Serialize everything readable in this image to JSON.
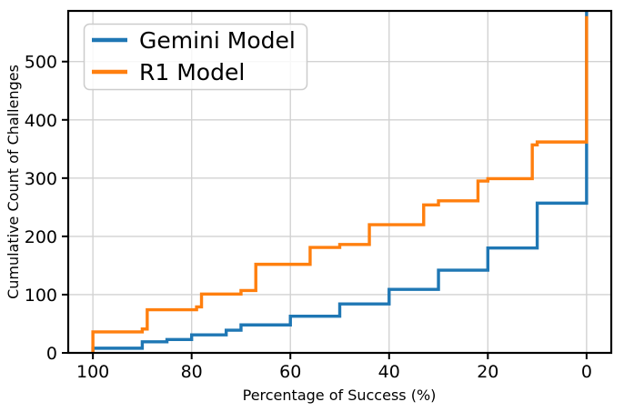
{
  "chart_data": {
    "type": "line",
    "subtype": "step-cumulative",
    "title": "",
    "xlabel": "Percentage of Success (%)",
    "ylabel": "Cumulative Count of Challenges",
    "x_axis_reversed": true,
    "xlim": [
      105,
      -5
    ],
    "ylim": [
      0,
      587
    ],
    "x_ticks": [
      100,
      80,
      60,
      40,
      20,
      0
    ],
    "x_tick_labels": [
      "100",
      "80",
      "60",
      "40",
      "20",
      "0"
    ],
    "y_ticks": [
      0,
      100,
      200,
      300,
      400,
      500
    ],
    "y_tick_labels": [
      "0",
      "100",
      "200",
      "300",
      "400",
      "500"
    ],
    "grid": true,
    "grid_color": "#d2d2d2",
    "spine_color": "#000000",
    "legend_position": "upper left",
    "series": [
      {
        "name": "Gemini Model",
        "color": "#1f77b4",
        "points": [
          [
            100,
            8
          ],
          [
            90,
            19
          ],
          [
            85,
            23
          ],
          [
            80,
            31
          ],
          [
            73,
            39
          ],
          [
            70,
            48
          ],
          [
            60,
            63
          ],
          [
            50,
            84
          ],
          [
            40,
            109
          ],
          [
            30,
            142
          ],
          [
            20,
            180
          ],
          [
            10,
            257
          ],
          [
            0,
            588
          ]
        ]
      },
      {
        "name": "R1 Model",
        "color": "#ff7f0e",
        "points": [
          [
            100,
            36
          ],
          [
            90,
            41
          ],
          [
            89,
            74
          ],
          [
            79,
            79
          ],
          [
            78,
            101
          ],
          [
            70,
            107
          ],
          [
            67,
            152
          ],
          [
            56,
            181
          ],
          [
            50,
            186
          ],
          [
            44,
            220
          ],
          [
            33,
            254
          ],
          [
            30,
            261
          ],
          [
            22,
            295
          ],
          [
            20,
            299
          ],
          [
            11,
            357
          ],
          [
            10,
            362
          ],
          [
            0,
            578
          ]
        ]
      }
    ]
  }
}
